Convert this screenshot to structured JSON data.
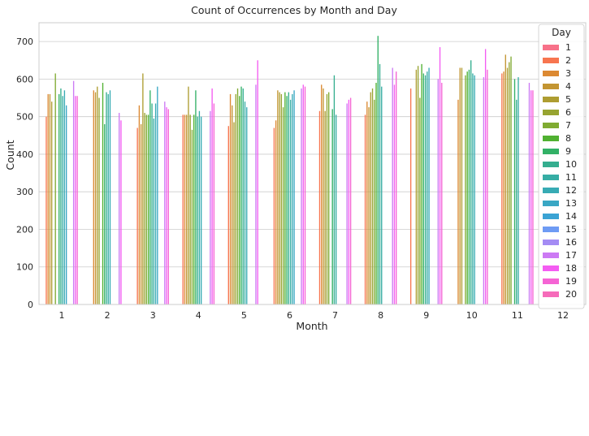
{
  "chart_data": {
    "type": "bar",
    "title": "Count of Occurrences by Month and Day",
    "xlabel": "Month",
    "ylabel": "Count",
    "categories": [
      "1",
      "2",
      "3",
      "4",
      "5",
      "6",
      "7",
      "8",
      "9",
      "10",
      "11",
      "12"
    ],
    "ylim": [
      0,
      750
    ],
    "yticks": [
      0,
      100,
      200,
      300,
      400,
      500,
      600,
      700
    ],
    "grid": true,
    "legend": {
      "title": "Day",
      "placement": "right"
    },
    "series": [
      {
        "name": "1",
        "color": "#f77189",
        "values": [
          null,
          null,
          null,
          null,
          null,
          null,
          null,
          null,
          null,
          null,
          null,
          null
        ]
      },
      {
        "name": "2",
        "color": "#f7754f",
        "values": [
          500,
          null,
          470,
          505,
          475,
          470,
          515,
          505,
          575,
          null,
          615,
          null
        ]
      },
      {
        "name": "3",
        "color": "#dc8932",
        "values": [
          560,
          570,
          530,
          505,
          560,
          490,
          585,
          540,
          null,
          545,
          620,
          null
        ]
      },
      {
        "name": "4",
        "color": "#c39532",
        "values": [
          560,
          565,
          480,
          505,
          530,
          570,
          575,
          525,
          null,
          630,
          665,
          null
        ]
      },
      {
        "name": "5",
        "color": "#ae9d31",
        "values": [
          540,
          580,
          615,
          580,
          485,
          565,
          515,
          565,
          625,
          630,
          630,
          null
        ]
      },
      {
        "name": "6",
        "color": "#97a431",
        "values": [
          null,
          550,
          510,
          505,
          560,
          560,
          560,
          575,
          635,
          null,
          645,
          null
        ]
      },
      {
        "name": "7",
        "color": "#80ab32",
        "values": [
          615,
          null,
          505,
          465,
          575,
          525,
          565,
          545,
          550,
          610,
          660,
          null
        ]
      },
      {
        "name": "8",
        "color": "#50b131",
        "values": [
          null,
          590,
          505,
          505,
          555,
          565,
          null,
          590,
          640,
          620,
          null,
          null
        ]
      },
      {
        "name": "9",
        "color": "#32b166",
        "values": [
          560,
          480,
          570,
          570,
          580,
          555,
          520,
          715,
          615,
          625,
          600,
          null
        ]
      },
      {
        "name": "10",
        "color": "#34ae8f",
        "values": [
          575,
          565,
          535,
          500,
          575,
          565,
          610,
          640,
          610,
          650,
          545,
          null
        ]
      },
      {
        "name": "11",
        "color": "#36ada4",
        "values": [
          555,
          560,
          495,
          515,
          540,
          545,
          505,
          580,
          620,
          615,
          605,
          null
        ]
      },
      {
        "name": "12",
        "color": "#37abb4",
        "values": [
          570,
          570,
          535,
          500,
          525,
          560,
          null,
          null,
          630,
          610,
          null,
          null
        ]
      },
      {
        "name": "13",
        "color": "#39a7c4",
        "values": [
          530,
          null,
          580,
          null,
          null,
          570,
          null,
          null,
          null,
          null,
          null,
          null
        ]
      },
      {
        "name": "14",
        "color": "#3ba3d4",
        "values": [
          null,
          null,
          null,
          null,
          null,
          null,
          null,
          null,
          null,
          null,
          null,
          null
        ]
      },
      {
        "name": "15",
        "color": "#6e9bf4",
        "values": [
          null,
          null,
          null,
          null,
          null,
          null,
          null,
          null,
          null,
          null,
          null,
          null
        ]
      },
      {
        "name": "16",
        "color": "#a48cf4",
        "values": [
          null,
          null,
          null,
          null,
          null,
          null,
          null,
          null,
          null,
          null,
          null,
          null
        ]
      },
      {
        "name": "17",
        "color": "#cc7af4",
        "values": [
          595,
          510,
          540,
          515,
          585,
          575,
          535,
          630,
          600,
          605,
          590,
          null
        ]
      },
      {
        "name": "18",
        "color": "#f45cf2",
        "values": [
          555,
          490,
          525,
          575,
          650,
          585,
          545,
          585,
          685,
          680,
          570,
          null
        ]
      },
      {
        "name": "19",
        "color": "#f564d4",
        "values": [
          555,
          null,
          520,
          535,
          null,
          580,
          550,
          620,
          590,
          625,
          570,
          null
        ]
      },
      {
        "name": "20",
        "color": "#f66bba",
        "values": [
          null,
          null,
          null,
          null,
          null,
          null,
          null,
          null,
          null,
          null,
          null,
          null
        ]
      }
    ]
  }
}
